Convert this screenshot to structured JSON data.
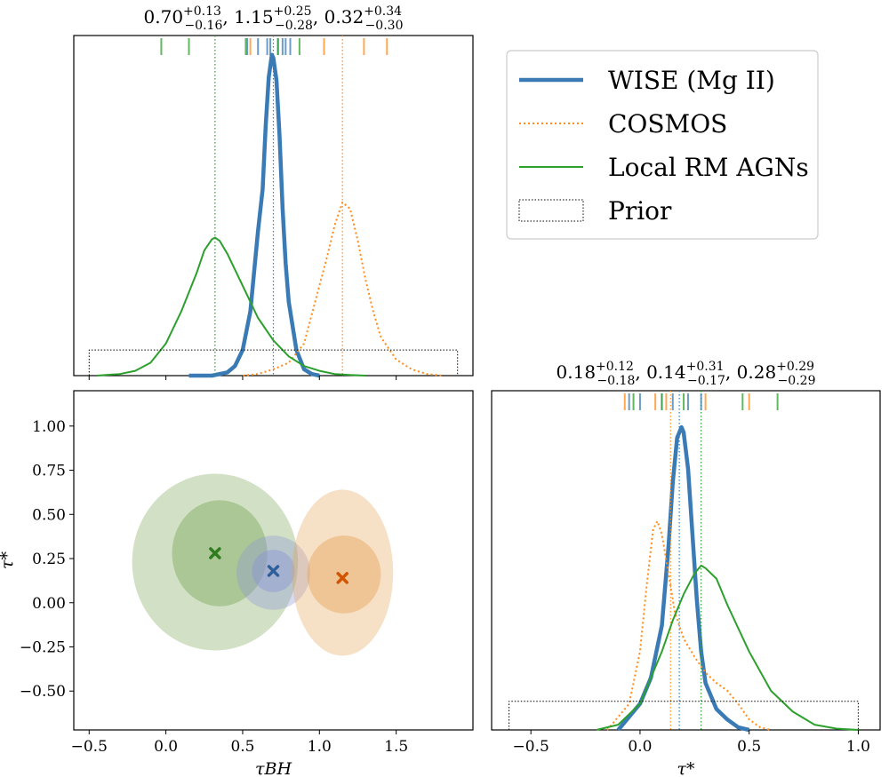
{
  "chart_data": [
    {
      "type": "line",
      "panel": "tau_BH marginal posterior",
      "title": {
        "values": [
          "0.70",
          "1.15",
          "0.32"
        ],
        "plus": [
          "+0.13",
          "+0.25",
          "+0.34"
        ],
        "minus": [
          "−0.16",
          "−0.28",
          "−0.30"
        ]
      },
      "x": [
        -0.5,
        -0.3,
        -0.1,
        0.0,
        0.1,
        0.2,
        0.25,
        0.3,
        0.32,
        0.35,
        0.4,
        0.5,
        0.6,
        0.7,
        0.8,
        0.9,
        1.0,
        1.1,
        1.15,
        1.2,
        1.3,
        1.4,
        1.5,
        1.6,
        1.7,
        1.8,
        1.9
      ],
      "series": [
        {
          "name": "WISE (Mg II)",
          "x": [
            0.15,
            0.3,
            0.4,
            0.45,
            0.5,
            0.55,
            0.6,
            0.63,
            0.65,
            0.67,
            0.69,
            0.7,
            0.72,
            0.74,
            0.76,
            0.78,
            0.8,
            0.85,
            0.9,
            0.95,
            1.0
          ],
          "y": [
            0.0,
            0.0,
            0.01,
            0.03,
            0.08,
            0.2,
            0.45,
            0.58,
            0.78,
            0.93,
            1.0,
            0.99,
            0.92,
            0.75,
            0.52,
            0.35,
            0.23,
            0.08,
            0.02,
            0.005,
            0.0
          ],
          "median": 0.7
        },
        {
          "name": "COSMOS",
          "x": [
            0.5,
            0.6,
            0.7,
            0.8,
            0.9,
            1.0,
            1.05,
            1.1,
            1.15,
            1.2,
            1.25,
            1.3,
            1.35,
            1.4,
            1.5,
            1.6,
            1.7,
            1.8
          ],
          "y": [
            0.0,
            0.005,
            0.02,
            0.04,
            0.1,
            0.28,
            0.37,
            0.47,
            0.54,
            0.52,
            0.42,
            0.3,
            0.2,
            0.12,
            0.05,
            0.02,
            0.005,
            0.0
          ],
          "median": 1.15
        },
        {
          "name": "Local RM AGNs",
          "x": [
            -0.45,
            -0.3,
            -0.2,
            -0.1,
            0.0,
            0.1,
            0.2,
            0.25,
            0.3,
            0.32,
            0.35,
            0.4,
            0.5,
            0.6,
            0.7,
            0.8,
            0.9,
            1.0,
            1.1,
            1.2,
            1.3
          ],
          "y": [
            0.0,
            0.005,
            0.015,
            0.04,
            0.1,
            0.2,
            0.32,
            0.39,
            0.425,
            0.43,
            0.42,
            0.38,
            0.28,
            0.18,
            0.11,
            0.06,
            0.03,
            0.015,
            0.005,
            0.002,
            0.0
          ],
          "median": 0.32
        },
        {
          "name": "Prior",
          "x": [
            -0.5,
            -0.5,
            1.9,
            1.9
          ],
          "y": [
            0.0,
            0.08,
            0.08,
            0.0
          ]
        }
      ],
      "xlim": [
        -0.6,
        2.0
      ],
      "ylim": [
        0,
        1.06
      ],
      "rug": {
        "WISE (Mg II)": [
          0.53,
          0.6,
          0.66,
          0.68,
          0.73,
          0.76,
          0.78,
          0.81
        ],
        "COSMOS": [
          0.55,
          1.03,
          1.29,
          1.44
        ],
        "Local RM AGNs": [
          -0.03,
          0.15,
          0.52,
          0.73,
          0.87
        ]
      }
    },
    {
      "type": "scatter",
      "panel": "joint tau_BH vs tau_star",
      "xlabel": "τBH",
      "ylabel": "τ*",
      "xlim": [
        -0.6,
        2.0
      ],
      "ylim": [
        -0.72,
        1.2
      ],
      "xticks": [
        "−0.5",
        "0.0",
        "0.5",
        "1.0",
        "1.5"
      ],
      "xtick_values": [
        -0.5,
        0.0,
        0.5,
        1.0,
        1.5
      ],
      "yticks": [
        "1.00",
        "0.75",
        "0.50",
        "0.25",
        "0.00",
        "−0.25",
        "−0.50"
      ],
      "ytick_values": [
        1.0,
        0.75,
        0.5,
        0.25,
        0.0,
        -0.25,
        -0.5
      ],
      "points": [
        {
          "name": "Local RM AGNs",
          "x": 0.32,
          "y": 0.28
        },
        {
          "name": "WISE (Mg II)",
          "x": 0.7,
          "y": 0.18
        },
        {
          "name": "COSMOS",
          "x": 1.15,
          "y": 0.14
        }
      ],
      "contours": [
        {
          "name": "Local RM AGNs",
          "outer": {
            "cx": 0.32,
            "cy": 0.23,
            "rx": 0.54,
            "ry": 0.5
          },
          "inner": {
            "cx": 0.35,
            "cy": 0.28,
            "rx": 0.31,
            "ry": 0.3
          }
        },
        {
          "name": "WISE (Mg II)",
          "outer": {
            "cx": 0.7,
            "cy": 0.17,
            "rx": 0.24,
            "ry": 0.21
          },
          "inner": {
            "cx": 0.7,
            "cy": 0.18,
            "rx": 0.14,
            "ry": 0.12
          }
        },
        {
          "name": "COSMOS",
          "outer": {
            "cx": 1.15,
            "cy": 0.17,
            "rx": 0.33,
            "ry": 0.47
          },
          "inner": {
            "cx": 1.16,
            "cy": 0.16,
            "rx": 0.24,
            "ry": 0.22
          }
        }
      ]
    },
    {
      "type": "line",
      "panel": "tau_star marginal posterior",
      "xlabel": "τ*",
      "title": {
        "values": [
          "0.18",
          "0.14",
          "0.28"
        ],
        "plus": [
          "+0.12",
          "+0.31",
          "+0.29"
        ],
        "minus": [
          "−0.18",
          "−0.17",
          "−0.29"
        ]
      },
      "xlim": [
        -0.68,
        1.1
      ],
      "ylim": [
        0,
        1.3
      ],
      "xticks": [
        "−0.5",
        "0.0",
        "0.5",
        "1.0"
      ],
      "xtick_values": [
        -0.5,
        0.0,
        0.5,
        1.0
      ],
      "series": [
        {
          "name": "WISE (Mg II)",
          "x": [
            -0.1,
            0.0,
            0.05,
            0.1,
            0.13,
            0.15,
            0.17,
            0.19,
            0.2,
            0.22,
            0.24,
            0.26,
            0.28,
            0.3,
            0.35,
            0.4,
            0.45,
            0.5
          ],
          "y": [
            0.0,
            0.1,
            0.2,
            0.4,
            0.7,
            0.95,
            1.12,
            1.16,
            1.14,
            1.0,
            0.75,
            0.5,
            0.3,
            0.18,
            0.08,
            0.04,
            0.01,
            0.0
          ],
          "median": 0.18
        },
        {
          "name": "COSMOS",
          "x": [
            -0.15,
            -0.05,
            0.0,
            0.03,
            0.06,
            0.08,
            0.1,
            0.13,
            0.16,
            0.2,
            0.25,
            0.3,
            0.35,
            0.4,
            0.45,
            0.5,
            0.55,
            0.6
          ],
          "y": [
            0.0,
            0.1,
            0.3,
            0.55,
            0.77,
            0.8,
            0.75,
            0.6,
            0.45,
            0.35,
            0.28,
            0.22,
            0.18,
            0.15,
            0.1,
            0.04,
            0.01,
            0.0
          ],
          "median": 0.14
        },
        {
          "name": "Local RM AGNs",
          "x": [
            -0.2,
            -0.1,
            0.0,
            0.1,
            0.15,
            0.2,
            0.25,
            0.28,
            0.3,
            0.35,
            0.4,
            0.5,
            0.6,
            0.7,
            0.8,
            0.9,
            1.0
          ],
          "y": [
            0.0,
            0.02,
            0.1,
            0.3,
            0.42,
            0.52,
            0.6,
            0.63,
            0.62,
            0.58,
            0.48,
            0.3,
            0.15,
            0.07,
            0.02,
            0.005,
            0.0
          ],
          "median": 0.28
        },
        {
          "name": "Prior",
          "x": [
            -0.6,
            -0.6,
            1.0,
            1.0
          ],
          "y": [
            0.0,
            0.11,
            0.11,
            0.0
          ]
        }
      ],
      "rug": {
        "WISE (Mg II)": [
          -0.05,
          0.0,
          0.1,
          0.15,
          0.22,
          0.28
        ],
        "COSMOS": [
          -0.07,
          0.07,
          0.12,
          0.3,
          0.5
        ],
        "Local RM AGNs": [
          -0.03,
          0.1,
          0.2,
          0.47,
          0.63
        ]
      }
    }
  ],
  "legend": {
    "placement": "top-right",
    "entries": [
      {
        "label": "WISE (Mg II)",
        "style": "thick-solid"
      },
      {
        "label": "COSMOS",
        "style": "dotted"
      },
      {
        "label": "Local RM AGNs",
        "style": "solid"
      },
      {
        "label": "Prior",
        "style": "dotted-box"
      }
    ]
  },
  "colors": {
    "WISE (Mg II)": "#3a7bb6",
    "COSMOS": "#ff8c1a",
    "Local RM AGNs": "#2ca02c",
    "Prior": "#000000",
    "WISE (Mg II) contour": "#8b94d6",
    "COSMOS contour": "#e6a55c",
    "Local RM AGNs contour": "#7da85a"
  }
}
